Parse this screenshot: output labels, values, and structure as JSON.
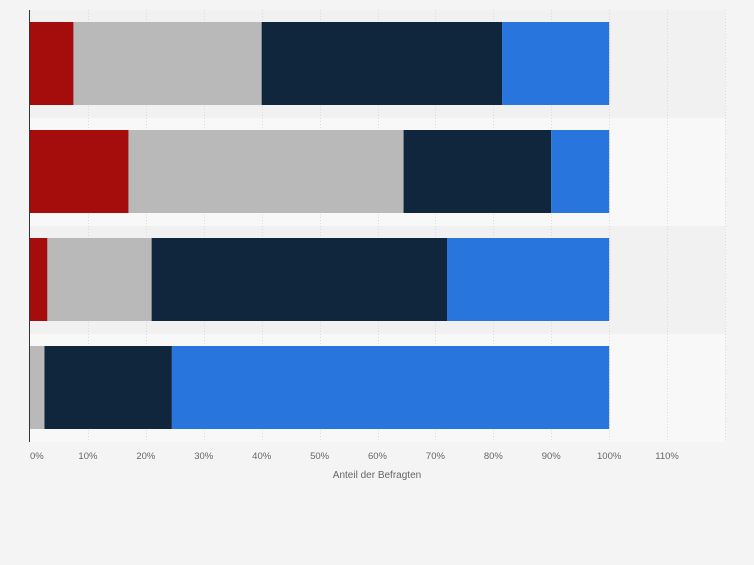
{
  "chart_data": {
    "type": "bar",
    "orientation": "horizontal",
    "stacked": true,
    "xlabel": "Anteil der Befragten",
    "xlim": [
      0,
      120
    ],
    "x_ticks": [
      0,
      10,
      20,
      30,
      40,
      50,
      60,
      70,
      80,
      90,
      100,
      110
    ],
    "x_tick_labels": [
      "0%",
      "10%",
      "20%",
      "30%",
      "40%",
      "50%",
      "60%",
      "70%",
      "80%",
      "90%",
      "100%",
      "110%"
    ],
    "grid": true,
    "category_count": 4,
    "series": [
      {
        "color": "#a50d0d",
        "values": [
          7.5,
          17,
          3,
          0
        ]
      },
      {
        "color": "#b9b9b9",
        "values": [
          32.5,
          47.5,
          18,
          2.5
        ]
      },
      {
        "color": "#0f263d",
        "values": [
          41.5,
          25.5,
          51,
          22
        ]
      },
      {
        "color": "#2876dd",
        "values": [
          18.5,
          10,
          28,
          75.5
        ]
      }
    ]
  }
}
